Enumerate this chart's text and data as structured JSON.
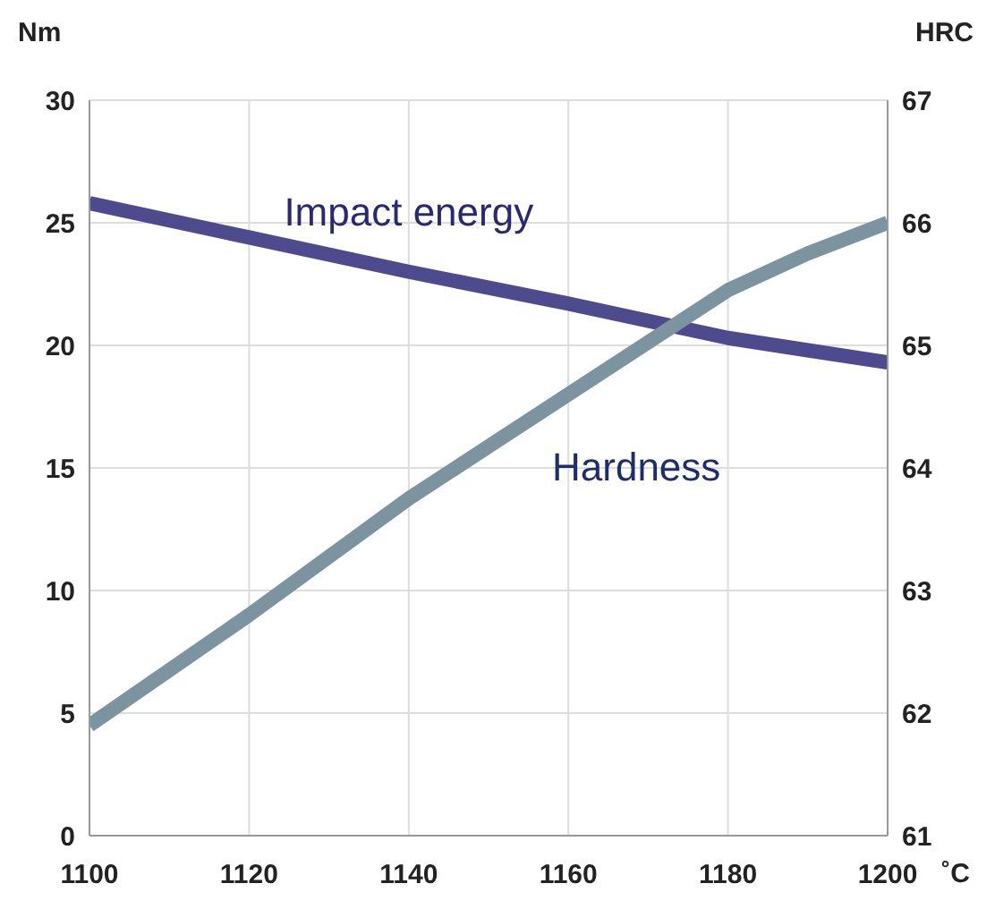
{
  "chart_data": {
    "type": "line",
    "ylabel": "Nm",
    "y2label": "HRC",
    "xlabel": "˚C",
    "x": [
      1100,
      1120,
      1140,
      1160,
      1180,
      1190,
      1200
    ],
    "series": [
      {
        "name": "Impact energy",
        "color": "#4e4a8e",
        "values": [
          25.8,
          24.4,
          23.0,
          21.7,
          20.3,
          19.8,
          19.3
        ]
      },
      {
        "name": "Hardness",
        "color": "#7b949f",
        "axis": "y2",
        "values": [
          61.9,
          62.8,
          63.75,
          64.6,
          65.45,
          65.75,
          66.0
        ]
      }
    ],
    "xlim": [
      1100,
      1200
    ],
    "xticks": [
      1100,
      1120,
      1140,
      1160,
      1180,
      1200
    ],
    "ylim": [
      0,
      30
    ],
    "yticks": [
      0,
      5,
      10,
      15,
      20,
      25,
      30
    ],
    "y2lim": [
      61,
      67
    ],
    "y2ticks": [
      61,
      62,
      63,
      64,
      65,
      66,
      67
    ],
    "grid": true,
    "marker": "none",
    "line_style": "solid"
  }
}
